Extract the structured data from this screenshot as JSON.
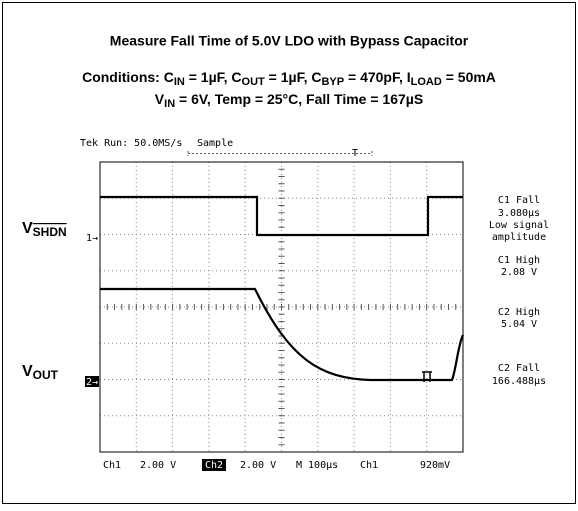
{
  "title": "Measure Fall Time of 5.0V LDO with Bypass Capacitor",
  "conditions_line1": [
    {
      "text": "Conditions: C"
    },
    {
      "sub": "IN"
    },
    {
      "text": " = 1µF, C"
    },
    {
      "sub": "OUT"
    },
    {
      "text": " = 1µF, C"
    },
    {
      "sub": "BYP"
    },
    {
      "text": " = 470pF, I"
    },
    {
      "sub": "LOAD"
    },
    {
      "text": " = 50mA"
    }
  ],
  "conditions_line2": [
    {
      "text": "V"
    },
    {
      "sub": "IN"
    },
    {
      "text": " = 6V, Temp = 25°C, Fall Time = 167µS"
    }
  ],
  "scope": {
    "header": "Tek Run: 50.0MS/s",
    "mode": "Sample",
    "trigger_marker": "T",
    "ch1_label": {
      "main": "V",
      "sub": "SHDN"
    },
    "ch1_marker": "1→",
    "ch2_label": {
      "main": "V",
      "sub": "OUT"
    },
    "ch2_marker": "2→",
    "measurements": [
      "C1 Fall",
      "3.080µs",
      "Low signal",
      "amplitude",
      "C1 High",
      "2.08 V",
      "C2 High",
      "5.04 V",
      "C2 Fall",
      "166.488µs"
    ],
    "footer": {
      "ch1": "Ch1",
      "ch1_scale": "2.00 V",
      "ch2": "Ch2",
      "ch2_scale": "2.00 V",
      "timebase": "M 100µs",
      "trigger_source": "Ch1",
      "trigger_level": "920mV"
    }
  }
}
